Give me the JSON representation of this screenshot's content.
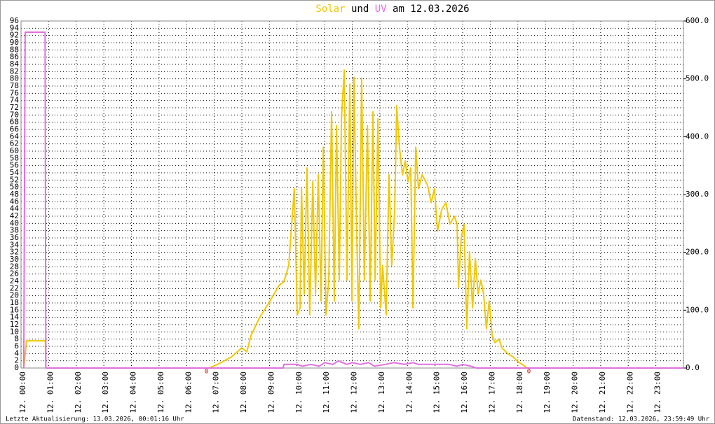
{
  "chart_data": {
    "type": "line",
    "title": {
      "connector": "und",
      "suffix": "am 12.03.2026"
    },
    "xlim": [
      0,
      24
    ],
    "xticks": [
      {
        "value": 0,
        "label": "12. 00:00"
      },
      {
        "value": 1,
        "label": "12. 01:00"
      },
      {
        "value": 2,
        "label": "12. 02:00"
      },
      {
        "value": 3,
        "label": "12. 03:00"
      },
      {
        "value": 4,
        "label": "12. 04:00"
      },
      {
        "value": 5,
        "label": "12. 05:00"
      },
      {
        "value": 6,
        "label": "12. 06:00"
      },
      {
        "value": 7,
        "label": "12. 07:00"
      },
      {
        "value": 8,
        "label": "12. 08:00"
      },
      {
        "value": 9,
        "label": "12. 09:00"
      },
      {
        "value": 10,
        "label": "12. 10:00"
      },
      {
        "value": 11,
        "label": "12. 11:00"
      },
      {
        "value": 12,
        "label": "12. 12:00"
      },
      {
        "value": 13,
        "label": "12. 13:00"
      },
      {
        "value": 14,
        "label": "12. 14:00"
      },
      {
        "value": 15,
        "label": "12. 15:00"
      },
      {
        "value": 16,
        "label": "12. 16:00"
      },
      {
        "value": 17,
        "label": "12. 17:00"
      },
      {
        "value": 18,
        "label": "12. 18:00"
      },
      {
        "value": 19,
        "label": "12. 19:00"
      },
      {
        "value": 20,
        "label": "12. 20:00"
      },
      {
        "value": 21,
        "label": "12. 21:00"
      },
      {
        "value": 22,
        "label": "12. 22:00"
      },
      {
        "value": 23,
        "label": "12. 23:00"
      }
    ],
    "ylim": [
      0,
      96
    ],
    "yticks": [
      0,
      2,
      4,
      6,
      8,
      10,
      12,
      14,
      16,
      18,
      20,
      22,
      24,
      26,
      28,
      30,
      32,
      34,
      36,
      38,
      40,
      42,
      44,
      46,
      48,
      50,
      52,
      54,
      56,
      58,
      60,
      62,
      64,
      66,
      68,
      70,
      72,
      74,
      76,
      78,
      80,
      82,
      84,
      86,
      88,
      90,
      92,
      94,
      96
    ],
    "y2lim": [
      0,
      600
    ],
    "y2ticks": [
      {
        "value": 0,
        "label": "0.0"
      },
      {
        "value": 100,
        "label": "100.0"
      },
      {
        "value": 200,
        "label": "200.0"
      },
      {
        "value": 300,
        "label": "300.0"
      },
      {
        "value": 400,
        "label": "400.0"
      },
      {
        "value": 500,
        "label": "500.0"
      },
      {
        "value": 600,
        "label": "600.0"
      }
    ],
    "grid": true,
    "series": [
      {
        "name": "Solar",
        "color": "#f0c800",
        "axis": "y2",
        "x": [
          0.1,
          0.2,
          0.88,
          0.9,
          6.8,
          7.11,
          7.62,
          8.0,
          8.18,
          8.33,
          8.63,
          9.02,
          9.35,
          9.52,
          9.7,
          9.9,
          10.01,
          10.11,
          10.16,
          10.26,
          10.36,
          10.46,
          10.57,
          10.67,
          10.77,
          10.87,
          10.95,
          11.05,
          11.15,
          11.25,
          11.35,
          11.43,
          11.53,
          11.61,
          11.71,
          11.81,
          11.91,
          11.99,
          12.06,
          12.17,
          12.24,
          12.34,
          12.44,
          12.55,
          12.65,
          12.75,
          12.83,
          12.93,
          13.03,
          13.1,
          13.23,
          13.33,
          13.43,
          13.54,
          13.61,
          13.71,
          13.82,
          13.92,
          14.02,
          14.12,
          14.2,
          14.3,
          14.4,
          14.53,
          14.73,
          14.86,
          14.98,
          15.09,
          15.24,
          15.39,
          15.54,
          15.7,
          15.8,
          15.85,
          15.95,
          16.05,
          16.15,
          16.25,
          16.36,
          16.46,
          16.56,
          16.66,
          16.76,
          16.86,
          16.96,
          17.07,
          17.17,
          17.32,
          17.42,
          17.63,
          17.83,
          18.03,
          18.23,
          18.34,
          24
        ],
        "values": [
          0,
          47,
          47,
          0,
          0,
          6,
          19,
          35,
          28,
          56,
          86,
          116,
          143,
          149,
          177,
          310,
          92,
          104,
          310,
          128,
          346,
          92,
          322,
          128,
          334,
          116,
          382,
          92,
          152,
          443,
          116,
          419,
          152,
          431,
          515,
          152,
          491,
          116,
          503,
          213,
          68,
          501,
          152,
          419,
          116,
          443,
          152,
          431,
          104,
          177,
          92,
          334,
          177,
          274,
          454,
          382,
          334,
          358,
          322,
          346,
          104,
          382,
          310,
          334,
          316,
          286,
          310,
          237,
          274,
          286,
          249,
          262,
          249,
          140,
          225,
          249,
          68,
          201,
          104,
          189,
          128,
          152,
          128,
          68,
          116,
          56,
          44,
          50,
          35,
          25,
          19,
          10,
          4,
          0,
          0
        ]
      },
      {
        "name": "UV",
        "color": "#e070e0",
        "axis": "y",
        "x": [
          0.1,
          0.15,
          0.87,
          0.9,
          9.5,
          9.52,
          10.0,
          10.2,
          10.5,
          10.8,
          11.0,
          11.3,
          11.5,
          11.8,
          12.0,
          12.3,
          12.6,
          12.8,
          13.2,
          13.5,
          13.9,
          14.2,
          14.4,
          15.5,
          15.8,
          16.0,
          16.3,
          16.5,
          24
        ],
        "values": [
          0,
          92.9,
          92.9,
          0,
          0,
          1,
          1,
          0.5,
          1,
          0.5,
          1.5,
          1,
          2,
          1,
          1.5,
          1,
          1.5,
          0.5,
          1,
          1.5,
          1,
          1.5,
          1,
          1,
          0.5,
          1,
          0.5,
          0,
          0
        ]
      }
    ],
    "annotations": [
      {
        "x": 6.72,
        "text": "0"
      },
      {
        "x": 18.4,
        "text": "0"
      }
    ],
    "footer": {
      "left": "Letzte Aktualisierung: 13.03.2026, 00:01:16 Uhr",
      "right": "Datenstand: 12.03.2026, 23:59:49 Uhr"
    }
  }
}
